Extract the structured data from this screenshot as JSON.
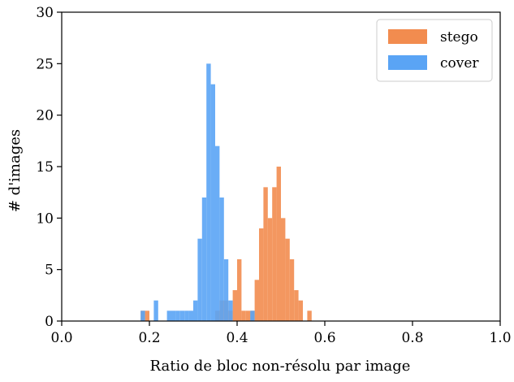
{
  "chart_data": {
    "type": "bar",
    "title": "",
    "xlabel": "Ratio de bloc non-résolu par image",
    "ylabel": "# d'images",
    "xlim": [
      0.0,
      1.0
    ],
    "ylim": [
      0,
      30
    ],
    "xticks": [
      "0.0",
      "0.2",
      "0.4",
      "0.6",
      "0.8",
      "1.0"
    ],
    "yticks": [
      "0",
      "5",
      "10",
      "15",
      "20",
      "25",
      "30"
    ],
    "grid": false,
    "legend_position": "top-right",
    "bin_width": 0.01,
    "series": [
      {
        "name": "stego",
        "color": "#f28c4f",
        "bins": [
          {
            "x": 0.18,
            "count": 1
          },
          {
            "x": 0.19,
            "count": 1
          },
          {
            "x": 0.35,
            "count": 1
          },
          {
            "x": 0.36,
            "count": 2
          },
          {
            "x": 0.37,
            "count": 2
          },
          {
            "x": 0.38,
            "count": 1
          },
          {
            "x": 0.39,
            "count": 3
          },
          {
            "x": 0.4,
            "count": 6
          },
          {
            "x": 0.41,
            "count": 1
          },
          {
            "x": 0.42,
            "count": 1
          },
          {
            "x": 0.43,
            "count": 1
          },
          {
            "x": 0.44,
            "count": 4
          },
          {
            "x": 0.45,
            "count": 9
          },
          {
            "x": 0.46,
            "count": 13
          },
          {
            "x": 0.47,
            "count": 10
          },
          {
            "x": 0.48,
            "count": 13
          },
          {
            "x": 0.49,
            "count": 15
          },
          {
            "x": 0.5,
            "count": 10
          },
          {
            "x": 0.51,
            "count": 8
          },
          {
            "x": 0.52,
            "count": 6
          },
          {
            "x": 0.53,
            "count": 3
          },
          {
            "x": 0.54,
            "count": 2
          },
          {
            "x": 0.56,
            "count": 1
          }
        ]
      },
      {
        "name": "cover",
        "color": "#5aa4f5",
        "bins": [
          {
            "x": 0.18,
            "count": 1
          },
          {
            "x": 0.21,
            "count": 2
          },
          {
            "x": 0.24,
            "count": 1
          },
          {
            "x": 0.25,
            "count": 1
          },
          {
            "x": 0.26,
            "count": 1
          },
          {
            "x": 0.27,
            "count": 1
          },
          {
            "x": 0.28,
            "count": 1
          },
          {
            "x": 0.29,
            "count": 1
          },
          {
            "x": 0.3,
            "count": 2
          },
          {
            "x": 0.31,
            "count": 8
          },
          {
            "x": 0.32,
            "count": 12
          },
          {
            "x": 0.33,
            "count": 25
          },
          {
            "x": 0.34,
            "count": 23
          },
          {
            "x": 0.35,
            "count": 17
          },
          {
            "x": 0.36,
            "count": 12
          },
          {
            "x": 0.37,
            "count": 6
          },
          {
            "x": 0.38,
            "count": 2
          },
          {
            "x": 0.43,
            "count": 1
          }
        ]
      }
    ]
  }
}
